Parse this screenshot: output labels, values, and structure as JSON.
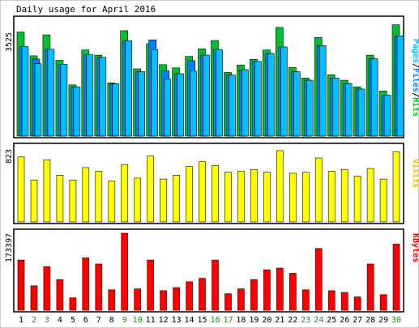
{
  "chart_data": [
    {
      "type": "bar",
      "title": "Daily usage for April 2016",
      "categories": [
        "1",
        "2",
        "3",
        "4",
        "5",
        "6",
        "7",
        "8",
        "9",
        "10",
        "11",
        "12",
        "13",
        "14",
        "15",
        "16",
        "17",
        "18",
        "19",
        "20",
        "21",
        "22",
        "23",
        "24",
        "25",
        "26",
        "27",
        "28",
        "29",
        "30"
      ],
      "weekend_days": [
        "2",
        "3",
        "9",
        "10",
        "16",
        "17",
        "23",
        "24",
        "30"
      ],
      "ylabel": "Pages/Files/Hits",
      "ylabel_parts": [
        "Pages",
        "Files",
        "Hits"
      ],
      "ytick_label": "3525",
      "ylim": [
        0,
        3525
      ],
      "grid": false,
      "series": [
        {
          "name": "Hits",
          "color": "#00c030",
          "values": [
            3190,
            2460,
            3100,
            2320,
            1570,
            2640,
            2480,
            1630,
            3230,
            2060,
            2830,
            2190,
            2090,
            2440,
            2670,
            2930,
            1950,
            2180,
            2350,
            2640,
            3330,
            2100,
            1780,
            3020,
            1880,
            1710,
            1510,
            2480,
            1380,
            3410
          ]
        },
        {
          "name": "Files",
          "color": "#0080ff",
          "values": [
            2740,
            2360,
            2660,
            2200,
            1510,
            2490,
            2410,
            1600,
            2920,
            1970,
            2950,
            2000,
            1910,
            2310,
            2480,
            2650,
            1870,
            2030,
            2290,
            2530,
            2730,
            1970,
            1710,
            2770,
            1780,
            1610,
            1440,
            2370,
            1250,
            3070
          ]
        },
        {
          "name": "Pages",
          "color": "#00c0ff",
          "values": [
            2740,
            2220,
            2660,
            2200,
            1510,
            2490,
            2410,
            1600,
            2920,
            1970,
            2650,
            1750,
            1910,
            1990,
            2480,
            2650,
            1870,
            2030,
            2290,
            2530,
            2730,
            1970,
            1710,
            2770,
            1780,
            1610,
            1440,
            2370,
            1250,
            3070
          ]
        }
      ]
    },
    {
      "type": "bar",
      "categories": [
        "1",
        "2",
        "3",
        "4",
        "5",
        "6",
        "7",
        "8",
        "9",
        "10",
        "11",
        "12",
        "13",
        "14",
        "15",
        "16",
        "17",
        "18",
        "19",
        "20",
        "21",
        "22",
        "23",
        "24",
        "25",
        "26",
        "27",
        "28",
        "29",
        "30"
      ],
      "ylabel": "Visits",
      "ytick_label": "823",
      "ylim": [
        0,
        823
      ],
      "grid": false,
      "series": [
        {
          "name": "Visits",
          "color": "#ffff00",
          "values": [
            750,
            484,
            717,
            539,
            484,
            628,
            584,
            473,
            662,
            506,
            762,
            495,
            539,
            639,
            695,
            650,
            573,
            584,
            606,
            573,
            823,
            562,
            573,
            739,
            584,
            606,
            528,
            617,
            495,
            812
          ]
        }
      ]
    },
    {
      "type": "bar",
      "categories": [
        "1",
        "2",
        "3",
        "4",
        "5",
        "6",
        "7",
        "8",
        "9",
        "10",
        "11",
        "12",
        "13",
        "14",
        "15",
        "16",
        "17",
        "18",
        "19",
        "20",
        "21",
        "22",
        "23",
        "24",
        "25",
        "26",
        "27",
        "28",
        "29",
        "30"
      ],
      "ylabel": "KBytes",
      "ytick_label": "173397",
      "ylim": [
        0,
        173397
      ],
      "grid": false,
      "series": [
        {
          "name": "KBytes",
          "color": "#ff0000",
          "values": [
            113000,
            55000,
            98000,
            69000,
            28000,
            118000,
            104000,
            46000,
            173397,
            48000,
            113000,
            44000,
            51000,
            64000,
            72000,
            113000,
            37000,
            48000,
            69000,
            91000,
            95000,
            83000,
            46000,
            139000,
            44000,
            40000,
            30000,
            104000,
            35000,
            149000
          ]
        }
      ]
    }
  ]
}
